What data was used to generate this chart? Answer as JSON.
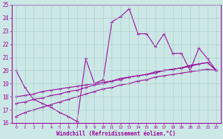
{
  "xlabel": "Windchill (Refroidissement éolien,°C)",
  "ylabel": "",
  "xlim": [
    -0.5,
    23.5
  ],
  "ylim": [
    16,
    25
  ],
  "yticks": [
    16,
    17,
    18,
    19,
    20,
    21,
    22,
    23,
    24,
    25
  ],
  "xticks": [
    0,
    1,
    2,
    3,
    4,
    5,
    6,
    7,
    8,
    9,
    10,
    11,
    12,
    13,
    14,
    15,
    16,
    17,
    18,
    19,
    20,
    21,
    22,
    23
  ],
  "bg_color": "#cce8e6",
  "line_color": "#990099",
  "grid_color": "#aacccc",
  "lines": [
    {
      "x": [
        0,
        1,
        2,
        3,
        4,
        5,
        6,
        7,
        8,
        9,
        10,
        11,
        12,
        13,
        14,
        15,
        16,
        17,
        18,
        19,
        20,
        21,
        22,
        23
      ],
      "y": [
        20.0,
        18.7,
        17.8,
        17.5,
        17.2,
        16.8,
        16.5,
        16.1,
        20.9,
        19.0,
        19.3,
        23.7,
        24.1,
        24.7,
        22.8,
        22.8,
        21.8,
        22.8,
        21.3,
        21.3,
        20.0,
        21.7,
        20.9,
        20.0
      ]
    },
    {
      "x": [
        0,
        1,
        2,
        3,
        4,
        5,
        6,
        7,
        8,
        9,
        10,
        11,
        12,
        13,
        14,
        15,
        16,
        17,
        18,
        19,
        20,
        21,
        22,
        23
      ],
      "y": [
        18.0,
        18.1,
        18.2,
        18.4,
        18.5,
        18.6,
        18.7,
        18.8,
        18.9,
        19.0,
        19.1,
        19.2,
        19.4,
        19.5,
        19.6,
        19.7,
        19.8,
        20.0,
        20.1,
        20.2,
        20.3,
        20.5,
        20.6,
        20.0
      ]
    },
    {
      "x": [
        0,
        1,
        2,
        3,
        4,
        5,
        6,
        7,
        8,
        9,
        10,
        11,
        12,
        13,
        14,
        15,
        16,
        17,
        18,
        19,
        20,
        21,
        22,
        23
      ],
      "y": [
        17.5,
        17.6,
        17.8,
        17.9,
        18.1,
        18.2,
        18.4,
        18.5,
        18.7,
        18.9,
        19.0,
        19.2,
        19.3,
        19.5,
        19.6,
        19.7,
        19.9,
        20.0,
        20.1,
        20.2,
        20.4,
        20.5,
        20.6,
        20.0
      ]
    },
    {
      "x": [
        0,
        1,
        2,
        3,
        4,
        5,
        6,
        7,
        8,
        9,
        10,
        11,
        12,
        13,
        14,
        15,
        16,
        17,
        18,
        19,
        20,
        21,
        22,
        23
      ],
      "y": [
        16.5,
        16.8,
        17.0,
        17.2,
        17.4,
        17.6,
        17.8,
        18.0,
        18.2,
        18.4,
        18.6,
        18.7,
        18.9,
        19.0,
        19.2,
        19.3,
        19.5,
        19.6,
        19.7,
        19.8,
        19.9,
        20.0,
        20.1,
        20.0
      ]
    }
  ]
}
